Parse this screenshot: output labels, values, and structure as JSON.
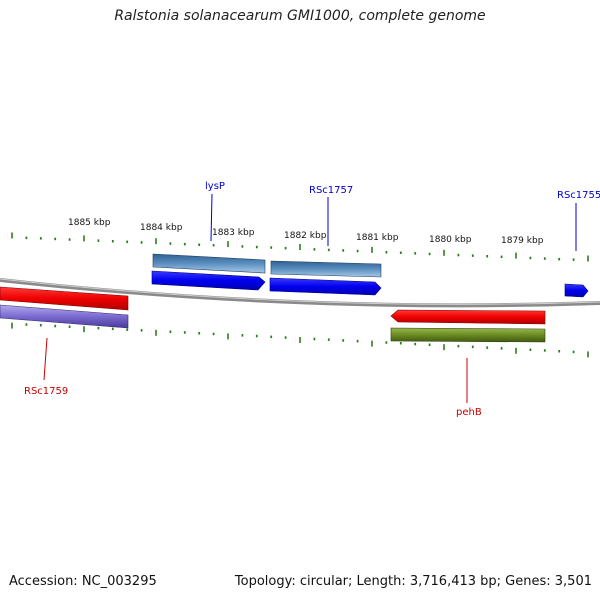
{
  "title": "Ralstonia solanacearum GMI1000, complete genome",
  "footer": {
    "accession": "Accession: NC_003295",
    "topology": "Topology: circular; Length: 3,716,413 bp; Genes: 3,501"
  },
  "scale_labels": [
    "1885 kbp",
    "1884 kbp",
    "1883 kbp",
    "1882 kbp",
    "1881 kbp",
    "1880 kbp",
    "1879 kbp"
  ],
  "gene_labels": {
    "lysP": "lysP",
    "RSc1757": "RSc1757",
    "RSc1755": "RSc1755",
    "RSc1759": "RSc1759",
    "pehB": "pehB"
  },
  "colors": {
    "backbone": "#888888",
    "tick": "#2e7d1e",
    "forward_cds": "#0000ee",
    "forward_gene": "#4a7fb0",
    "reverse_cds": "#ee0000",
    "reverse_gene_purple": "#7a6ad0",
    "reverse_gene_olive": "#6a8a22",
    "label_blue": "#0000cc",
    "label_red": "#cc0000"
  }
}
